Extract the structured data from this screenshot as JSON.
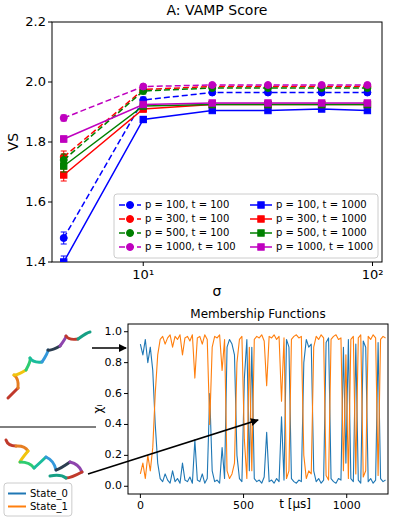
{
  "chart_data": [
    {
      "type": "line",
      "title": "A: VAMP Score",
      "x_label": "σ",
      "y_label": "VS",
      "log": "x",
      "grid": false,
      "legend": "lower right",
      "x": [
        4.5,
        10,
        20,
        35,
        60,
        95
      ],
      "xlim": [
        4,
        110
      ],
      "xticks": [
        {
          "value": 10,
          "label": "10¹"
        },
        {
          "value": 100,
          "label": "10²"
        }
      ],
      "ylim": [
        1.4,
        2.2
      ],
      "yticks": [
        1.4,
        1.6,
        1.8,
        {
          "value": 2,
          "label": "2.0"
        },
        2.2
      ],
      "series": [
        {
          "name": "p = 100, t = 100",
          "color": "#0000ff",
          "line_style": "dashed",
          "marker": "circle",
          "values": [
            1.48,
            1.94,
            1.965,
            1.965,
            1.965,
            1.965
          ],
          "errors": [
            0.02,
            0.01,
            0.005,
            0.005,
            0.005,
            0.005
          ]
        },
        {
          "name": "p = 300, t = 100",
          "color": "#ff0000",
          "line_style": "dashed",
          "marker": "circle",
          "values": [
            1.75,
            1.975,
            1.985,
            1.985,
            1.985,
            1.985
          ],
          "errors": [
            0.02,
            0.01,
            0.005,
            0.005,
            0.005,
            0.005
          ]
        },
        {
          "name": "p = 500, t = 100",
          "color": "#008000",
          "line_style": "dashed",
          "marker": "circle",
          "values": [
            1.74,
            1.97,
            1.98,
            1.98,
            1.98,
            1.98
          ],
          "errors": [
            0.02,
            0.01,
            0.005,
            0.005,
            0.005,
            0.005
          ]
        },
        {
          "name": "p = 1000, t = 100",
          "color": "#bf00bf",
          "line_style": "dashed",
          "marker": "circle",
          "values": [
            1.88,
            1.985,
            1.99,
            1.99,
            1.99,
            1.99
          ],
          "errors": [
            0.01,
            0.005,
            0.005,
            0.005,
            0.005,
            0.005
          ]
        },
        {
          "name": "p = 100, t = 1000",
          "color": "#0000ff",
          "line_style": "solid",
          "marker": "square",
          "values": [
            1.4,
            1.875,
            1.905,
            1.905,
            1.91,
            1.905
          ],
          "errors": [
            0.02,
            0.01,
            0.005,
            0.005,
            0.005,
            0.005
          ]
        },
        {
          "name": "p = 300, t = 1000",
          "color": "#ff0000",
          "line_style": "solid",
          "marker": "square",
          "values": [
            1.69,
            1.91,
            1.925,
            1.925,
            1.925,
            1.925
          ],
          "errors": [
            0.02,
            0.01,
            0.005,
            0.005,
            0.005,
            0.005
          ]
        },
        {
          "name": "p = 500, t = 1000",
          "color": "#008000",
          "line_style": "solid",
          "marker": "square",
          "values": [
            1.72,
            1.92,
            1.925,
            1.925,
            1.925,
            1.925
          ],
          "errors": [
            0.02,
            0.01,
            0.005,
            0.005,
            0.005,
            0.005
          ]
        },
        {
          "name": "p = 1000, t = 1000",
          "color": "#bf00bf",
          "line_style": "solid",
          "marker": "square",
          "values": [
            1.81,
            1.925,
            1.93,
            1.93,
            1.93,
            1.93
          ],
          "errors": [
            0.01,
            0.005,
            0.005,
            0.005,
            0.005,
            0.005
          ]
        }
      ]
    },
    {
      "type": "line",
      "title": "Membership Functions",
      "x_label": "t [μs]",
      "y_label": "χᵢ",
      "grid": false,
      "legend": "left",
      "x": [
        0,
        12,
        24,
        36,
        48,
        60,
        72,
        84,
        96,
        108,
        120,
        132,
        144,
        156,
        168,
        180,
        192,
        204,
        216,
        228,
        240,
        252,
        264,
        276,
        288,
        300,
        312,
        324,
        336,
        348,
        360,
        372,
        384,
        396,
        408,
        420,
        432,
        444,
        456,
        468,
        480,
        492,
        504,
        516,
        528,
        540,
        552,
        564,
        576,
        588,
        600,
        612,
        624,
        636,
        648,
        660,
        672,
        684,
        696,
        708,
        720,
        732,
        744,
        756,
        768,
        780,
        792,
        804,
        816,
        828,
        840,
        852,
        864,
        876,
        888,
        900,
        912,
        924,
        936,
        948,
        960,
        972,
        984,
        996,
        1008,
        1020,
        1032,
        1044,
        1056,
        1068,
        1080,
        1092,
        1104,
        1116,
        1128,
        1140,
        1152,
        1164,
        1176,
        1188
      ],
      "xlim": [
        -60,
        1200
      ],
      "xticks": [
        0,
        500,
        1000
      ],
      "ylim": [
        -0.05,
        1.05
      ],
      "yticks": [
        {
          "value": 0,
          "label": "0.0"
        },
        0.2,
        0.4,
        0.6,
        0.8,
        {
          "value": 1,
          "label": "1.0"
        }
      ],
      "series": [
        {
          "name": "State_0",
          "color": "#1f77b4",
          "values": [
            0.92,
            0.85,
            0.95,
            0.8,
            0.9,
            0.75,
            0.4,
            0.15,
            0.05,
            0.03,
            0.08,
            0.04,
            0.02,
            0.1,
            0.03,
            0.05,
            0.02,
            0.15,
            0.04,
            0.03,
            0.06,
            0.02,
            0.3,
            0.04,
            0.03,
            0.08,
            0.02,
            0.05,
            0.6,
            0.1,
            0.03,
            0.04,
            0.02,
            0.25,
            0.05,
            0.9,
            0.95,
            0.92,
            0.85,
            0.2,
            0.05,
            0.03,
            0.7,
            0.95,
            0.1,
            0.9,
            0.05,
            0.03,
            0.04,
            0.02,
            0.06,
            0.35,
            0.03,
            0.04,
            0.02,
            0.05,
            0.03,
            0.45,
            0.04,
            0.95,
            0.9,
            0.05,
            0.03,
            0.02,
            0.04,
            0.03,
            0.8,
            0.95,
            0.9,
            0.92,
            0.1,
            0.03,
            0.05,
            0.02,
            0.04,
            0.93,
            0.96,
            0.05,
            0.03,
            0.02,
            0.05,
            0.04,
            0.9,
            0.15,
            0.95,
            0.05,
            0.03,
            0.92,
            0.04,
            0.02,
            0.94,
            0.9,
            0.03,
            0.05,
            0.02,
            0.04,
            0.93,
            0.05,
            0.03,
            0.04
          ]
        },
        {
          "name": "State_1",
          "color": "#ff7f0e",
          "values": [
            0.08,
            0.15,
            0.05,
            0.2,
            0.1,
            0.25,
            0.6,
            0.85,
            0.95,
            0.97,
            0.92,
            0.96,
            0.98,
            0.9,
            0.97,
            0.95,
            0.98,
            0.85,
            0.96,
            0.97,
            0.94,
            0.98,
            0.7,
            0.96,
            0.97,
            0.92,
            0.98,
            0.95,
            0.4,
            0.9,
            0.97,
            0.96,
            0.98,
            0.75,
            0.95,
            0.1,
            0.05,
            0.08,
            0.15,
            0.8,
            0.95,
            0.97,
            0.3,
            0.05,
            0.9,
            0.1,
            0.95,
            0.97,
            0.96,
            0.98,
            0.94,
            0.65,
            0.97,
            0.96,
            0.98,
            0.95,
            0.97,
            0.55,
            0.96,
            0.05,
            0.1,
            0.95,
            0.97,
            0.98,
            0.96,
            0.97,
            0.2,
            0.05,
            0.1,
            0.08,
            0.9,
            0.97,
            0.95,
            0.98,
            0.96,
            0.07,
            0.04,
            0.95,
            0.97,
            0.98,
            0.95,
            0.96,
            0.1,
            0.85,
            0.05,
            0.95,
            0.97,
            0.08,
            0.96,
            0.98,
            0.06,
            0.1,
            0.97,
            0.95,
            0.98,
            0.96,
            0.07,
            0.95,
            0.97,
            0.96
          ]
        }
      ]
    }
  ]
}
